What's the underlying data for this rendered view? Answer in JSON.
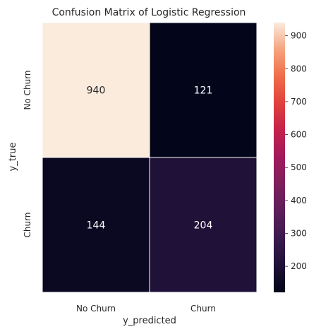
{
  "chart_data": {
    "type": "heatmap",
    "title": "Confusion Matrix of Logistic Regression",
    "xlabel": "y_predicted",
    "ylabel": "y_true",
    "x_categories": [
      "No Churn",
      "Churn"
    ],
    "y_categories": [
      "No Churn",
      "Churn"
    ],
    "values": [
      [
        940,
        121
      ],
      [
        144,
        204
      ]
    ],
    "colorbar": {
      "min": 121,
      "max": 940,
      "ticks": [
        200,
        300,
        400,
        500,
        600,
        700,
        800,
        900
      ],
      "colormap": "rocket"
    },
    "annotations_shown": true
  }
}
